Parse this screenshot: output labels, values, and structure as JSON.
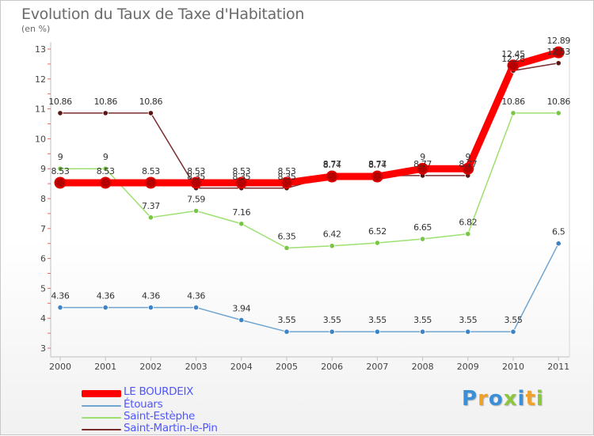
{
  "chart_data": {
    "type": "line",
    "title": "Evolution du Taux de Taxe d'Habitation",
    "subtitle": "(en %)",
    "categories": [
      "2000",
      "2001",
      "2002",
      "2003",
      "2004",
      "2005",
      "2006",
      "2007",
      "2008",
      "2009",
      "2010",
      "2011"
    ],
    "ylim": [
      3,
      13
    ],
    "yticks": [
      "3",
      "4",
      "5",
      "6",
      "7",
      "8",
      "9",
      "10",
      "11",
      "12",
      "13"
    ],
    "grid": false,
    "legend_position": "bottom-left",
    "series": [
      {
        "name": "LE BOURDEIX",
        "color": "#ff0000",
        "marker": "#b40000",
        "values": [
          8.53,
          8.53,
          8.53,
          8.53,
          8.53,
          8.53,
          8.74,
          8.74,
          9,
          9,
          12.45,
          12.89
        ],
        "labels": [
          "8.53",
          "8.53",
          "8.53",
          "8.53",
          "8.53",
          "8.53",
          "8.74",
          "8.74",
          "9",
          "9",
          "12.45",
          "12.89"
        ]
      },
      {
        "name": "Étouars",
        "color": "#6fa5d0",
        "marker": "#3d84c6",
        "values": [
          4.36,
          4.36,
          4.36,
          4.36,
          3.94,
          3.55,
          3.55,
          3.55,
          3.55,
          3.55,
          3.55,
          6.5
        ],
        "labels": [
          "4.36",
          "4.36",
          "4.36",
          "4.36",
          "3.94",
          "3.55",
          "3.55",
          "3.55",
          "3.55",
          "3.55",
          "3.55",
          "6.5"
        ]
      },
      {
        "name": "Saint-Estèphe",
        "color": "#9de070",
        "marker": "#78c646",
        "values": [
          9,
          9,
          7.37,
          7.59,
          7.16,
          6.35,
          6.42,
          6.52,
          6.65,
          6.82,
          10.86,
          10.86
        ],
        "labels": [
          "9",
          "9",
          "7.37",
          "7.59",
          "7.16",
          "6.35",
          "6.42",
          "6.52",
          "6.65",
          "6.82",
          "10.86",
          "10.86"
        ]
      },
      {
        "name": "Saint-Martin-le-Pin",
        "color": "#7a2c2c",
        "marker": "#5a1414",
        "values": [
          10.86,
          10.86,
          10.86,
          8.35,
          8.35,
          8.35,
          8.77,
          8.77,
          8.77,
          8.77,
          12.28,
          12.53
        ],
        "labels": [
          "10.86",
          "10.86",
          "10.86",
          "8.35",
          "8.35",
          "8.35",
          "8.77",
          "8.77",
          "8.77",
          "8.77",
          "12.28",
          "12.53"
        ]
      }
    ]
  },
  "logo": {
    "text": "Proxiti",
    "colors": [
      "#3b8fd6",
      "#f0a12a",
      "#3b8fd6",
      "#8cc63f",
      "#3b8fd6",
      "#f0a12a",
      "#8cc63f"
    ]
  }
}
